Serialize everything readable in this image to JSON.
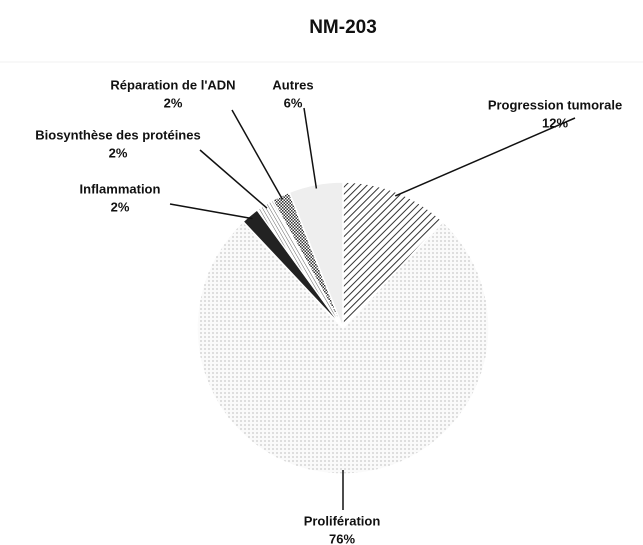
{
  "chart_data": {
    "type": "pie",
    "title": "NM-203",
    "categories": [
      "Progression tumorale",
      "Prolifération",
      "Inflammation",
      "Biosynthèse des protéines",
      "Réparation de l'ADN",
      "Autres"
    ],
    "values": [
      12,
      76,
      2,
      2,
      2,
      6
    ],
    "value_labels": [
      "12%",
      "76%",
      "2%",
      "2%",
      "2%",
      "6%"
    ],
    "colors": [
      "#333333",
      "#9a9a9a",
      "#222222",
      "#666666",
      "#333333",
      "#eeeeee"
    ]
  }
}
